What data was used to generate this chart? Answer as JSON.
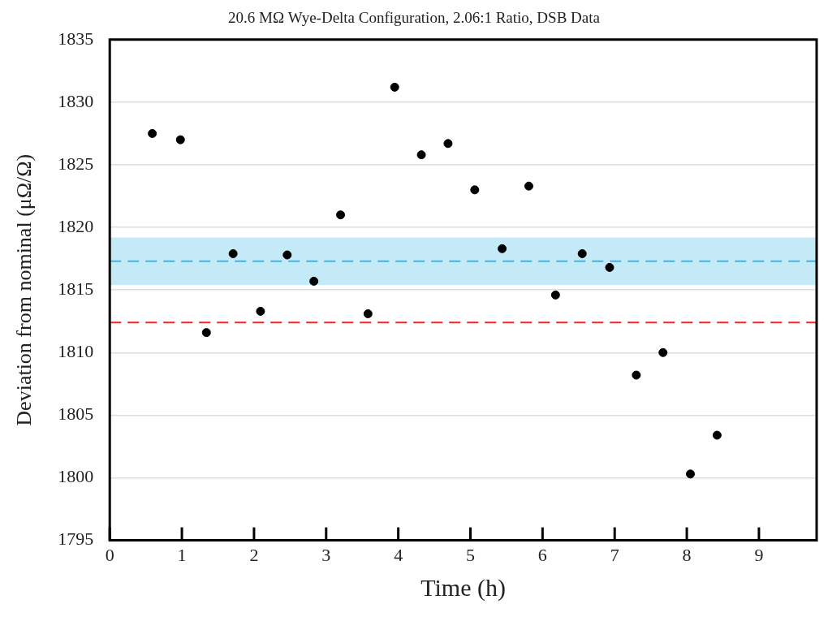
{
  "chart_data": {
    "type": "scatter",
    "title": "20.6 MΩ Wye-Delta Configuration, 2.06:1 Ratio, DSB Data",
    "xlabel": "Time (h)",
    "ylabel": "Deviation from nominal (μΩ/Ω)",
    "x": [
      0.59,
      0.98,
      1.34,
      1.71,
      2.09,
      2.46,
      2.83,
      3.2,
      3.58,
      3.95,
      4.32,
      4.69,
      5.06,
      5.44,
      5.81,
      6.18,
      6.55,
      6.93,
      7.3,
      7.67,
      8.05,
      8.42
    ],
    "series": [
      {
        "color": "#000000",
        "values": [
          1827.5,
          1827.0,
          1811.6,
          1817.9,
          1813.3,
          1817.8,
          1815.7,
          1821.0,
          1813.1,
          1831.2,
          1825.8,
          1826.7,
          1823.0,
          1818.3,
          1823.3,
          1814.6,
          1817.9,
          1816.8,
          1808.2,
          1810.0,
          1800.3,
          1803.4
        ]
      }
    ],
    "xlim": [
      0,
      9.8
    ],
    "xticks": [
      0,
      1,
      2,
      3,
      4,
      5,
      6,
      7,
      8,
      9
    ],
    "ylim": [
      1795,
      1835
    ],
    "yticks": [
      1795,
      1800,
      1805,
      1810,
      1815,
      1820,
      1825,
      1830,
      1835
    ],
    "bands": [
      {
        "axis": "y",
        "from": 1815.4,
        "to": 1819.2,
        "color": "#c5eaf7"
      }
    ],
    "ref_lines": [
      {
        "axis": "y",
        "value": 1817.3,
        "color": "#3fb5e5",
        "line_style": "dashed"
      },
      {
        "axis": "y",
        "value": 1812.4,
        "color": "#ff2020",
        "line_style": "dashed"
      }
    ],
    "grid": "y",
    "legend": false,
    "marker": "circle"
  }
}
